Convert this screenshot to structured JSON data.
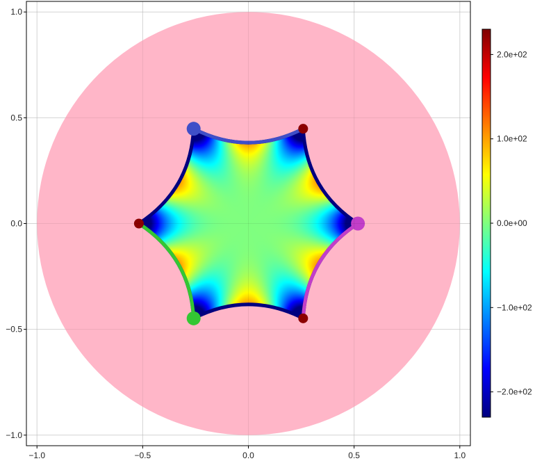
{
  "chart_data": {
    "type": "heatmap",
    "title": "",
    "xlabel": "",
    "ylabel": "",
    "xlim": [
      -1.05,
      1.05
    ],
    "ylim": [
      -1.05,
      1.05
    ],
    "grid": true,
    "x_ticks": [
      -1.0,
      -0.5,
      0.0,
      0.5,
      1.0
    ],
    "x_tick_labels": [
      "−1.0",
      "−0.5",
      "0.0",
      "0.5",
      "1.0"
    ],
    "y_ticks": [
      -1.0,
      -0.5,
      0.0,
      0.5,
      1.0
    ],
    "y_tick_labels": [
      "−1.0",
      "−0.5",
      "0.0",
      "0.5",
      "1.0"
    ],
    "disk": {
      "center": [
        0,
        0
      ],
      "radius": 1.0,
      "color": "#ffb6c8"
    },
    "hexagon_vertices": [
      [
        0.259,
        0.448
      ],
      [
        0.518,
        0.0
      ],
      [
        0.259,
        -0.448
      ],
      [
        -0.259,
        -0.448
      ],
      [
        -0.518,
        0.0
      ],
      [
        -0.259,
        0.448
      ]
    ],
    "field": {
      "modes": 6,
      "amplitude": 230,
      "colormap": "jet",
      "clim": [
        -230,
        230
      ]
    },
    "boundary_arcs": [
      {
        "from": [
          -0.259,
          0.448
        ],
        "to": [
          0.259,
          0.448
        ],
        "color": "#3f4fc8"
      },
      {
        "from": [
          0.518,
          0.0
        ],
        "to": [
          0.259,
          -0.448
        ],
        "color": "#c23ec9"
      },
      {
        "from": [
          -0.518,
          0.0
        ],
        "to": [
          -0.259,
          -0.448
        ],
        "color": "#33c733"
      }
    ],
    "highlight_points": [
      {
        "xy": [
          -0.259,
          0.448
        ],
        "color": "#3f4fc8"
      },
      {
        "xy": [
          0.518,
          0.0
        ],
        "color": "#c23ec9"
      },
      {
        "xy": [
          -0.259,
          -0.448
        ],
        "color": "#33c733"
      }
    ],
    "vertex_points": [
      {
        "xy": [
          0.259,
          0.448
        ],
        "color": "#8b0000"
      },
      {
        "xy": [
          -0.518,
          0.0
        ],
        "color": "#8b0000"
      },
      {
        "xy": [
          0.259,
          -0.448
        ],
        "color": "#8b0000"
      }
    ],
    "edge_color": "#00007f",
    "colorbar": {
      "range": [
        -230,
        230
      ],
      "ticks": [
        -200,
        -100,
        0,
        100,
        200
      ],
      "tick_labels": [
        "−2.0e+02",
        "−1.0e+02",
        "0.0e+00",
        "1.0e+02",
        "2.0e+02"
      ]
    }
  }
}
